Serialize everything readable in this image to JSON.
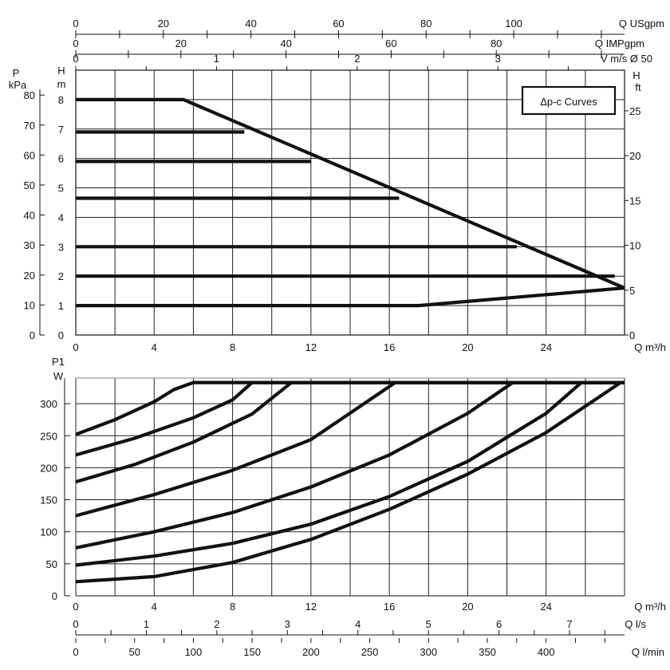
{
  "chart_data": [
    {
      "type": "line",
      "title": "Δp-c Curves",
      "xlabel": "Q m³/h",
      "xlim": [
        0,
        28
      ],
      "x_ticks": [
        "0",
        "4",
        "8",
        "12",
        "16",
        "20",
        "24"
      ],
      "left_axis_1": {
        "label_top": "P",
        "label_bottom": "kPa",
        "ticks": [
          "0",
          "10",
          "20",
          "30",
          "40",
          "50",
          "60",
          "70",
          "80"
        ]
      },
      "left_axis_2": {
        "label_top": "H",
        "label_bottom": "m",
        "ylim": [
          0,
          9
        ],
        "ticks": [
          "0",
          "1",
          "2",
          "3",
          "4",
          "5",
          "6",
          "7",
          "8"
        ]
      },
      "right_axis": {
        "label_top": "H",
        "label_bottom": "ft",
        "ticks": [
          "0",
          "5",
          "10",
          "15",
          "20",
          "25"
        ]
      },
      "top_axes": [
        {
          "label": "Q USgpm",
          "ticks": [
            "0",
            "20",
            "40",
            "60",
            "80",
            "100"
          ]
        },
        {
          "label": "Q IMPgpm",
          "ticks": [
            "0",
            "20",
            "40",
            "60",
            "80"
          ]
        },
        {
          "label": "V m/s Ø 50",
          "ticks": [
            "0",
            "1",
            "2",
            "3"
          ]
        }
      ],
      "series": [
        {
          "x": [
            0,
            5.5,
            28
          ],
          "y": [
            8,
            8,
            1.6
          ]
        },
        {
          "x": [
            0,
            8.6
          ],
          "y": [
            6.9,
            6.9
          ]
        },
        {
          "x": [
            0,
            12.0
          ],
          "y": [
            5.9,
            5.9
          ]
        },
        {
          "x": [
            0,
            16.5
          ],
          "y": [
            4.65,
            4.65
          ]
        },
        {
          "x": [
            0,
            22.5
          ],
          "y": [
            3.0,
            3.0
          ]
        },
        {
          "x": [
            0,
            27.5
          ],
          "y": [
            2.0,
            2.0
          ]
        },
        {
          "x": [
            0,
            17.5,
            28
          ],
          "y": [
            1.0,
            1.0,
            1.6
          ]
        }
      ]
    },
    {
      "type": "line",
      "xlabel": "Q m³/h",
      "xlim": [
        0,
        28
      ],
      "ylim": [
        0,
        340
      ],
      "x_ticks": [
        "0",
        "4",
        "8",
        "12",
        "16",
        "20",
        "24"
      ],
      "ylabel_top": "P1",
      "ylabel": "W",
      "y_ticks": [
        "0",
        "50",
        "100",
        "150",
        "200",
        "250",
        "300"
      ],
      "bottom_axes": [
        {
          "label": "Q l/s",
          "ticks": [
            "0",
            "1",
            "2",
            "3",
            "4",
            "5",
            "6",
            "7"
          ]
        },
        {
          "label": "Q l/min",
          "ticks": [
            "0",
            "50",
            "100",
            "150",
            "200",
            "250",
            "300",
            "350",
            "400"
          ]
        }
      ],
      "series": [
        {
          "x": [
            0,
            2,
            4,
            5,
            6,
            28
          ],
          "y": [
            252,
            275,
            303,
            322,
            333,
            333
          ]
        },
        {
          "x": [
            0,
            3,
            6,
            8,
            9,
            28
          ],
          "y": [
            220,
            246,
            278,
            306,
            333,
            333
          ]
        },
        {
          "x": [
            0,
            3,
            6,
            9,
            11,
            28
          ],
          "y": [
            178,
            205,
            240,
            284,
            333,
            333
          ]
        },
        {
          "x": [
            0,
            4,
            8,
            12,
            16.3,
            28
          ],
          "y": [
            125,
            158,
            196,
            244,
            333,
            333
          ]
        },
        {
          "x": [
            0,
            4,
            8,
            12,
            16,
            20,
            22.3,
            28
          ],
          "y": [
            75,
            100,
            130,
            170,
            220,
            285,
            333,
            333
          ]
        },
        {
          "x": [
            0,
            4,
            8,
            12,
            16,
            20,
            24,
            25.8,
            28
          ],
          "y": [
            48,
            62,
            82,
            112,
            155,
            210,
            285,
            333,
            333
          ]
        },
        {
          "x": [
            0,
            4,
            8,
            12,
            16,
            20,
            24,
            27.8,
            28
          ],
          "y": [
            22,
            30,
            52,
            88,
            135,
            190,
            255,
            333,
            333
          ]
        }
      ]
    }
  ]
}
